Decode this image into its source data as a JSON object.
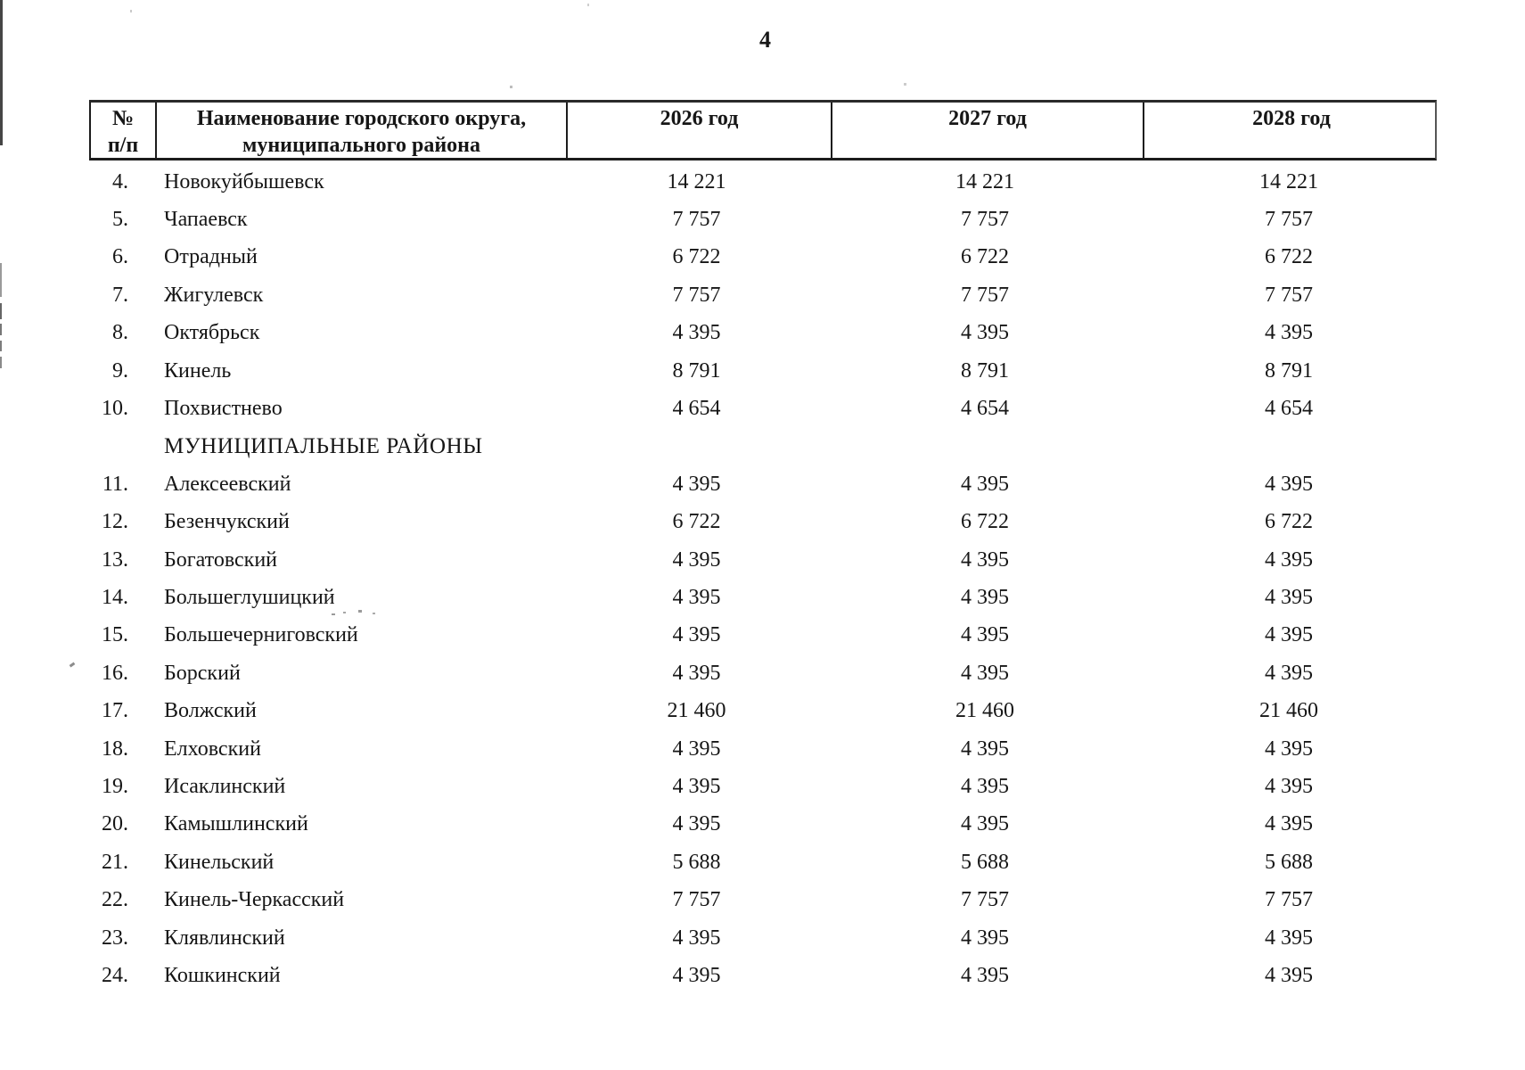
{
  "page": {
    "number": "4"
  },
  "table": {
    "header": {
      "num_line1": "№",
      "num_line2": "п/п",
      "name_line1": "Наименование городского округа,",
      "name_line2": "муниципального района",
      "year_2026": "2026 год",
      "year_2027": "2027 год",
      "year_2028": "2028 год"
    },
    "rows": [
      {
        "num": "4.",
        "name": "Новокуйбышевск",
        "y2026": "14 221",
        "y2027": "14 221",
        "y2028": "14 221"
      },
      {
        "num": "5.",
        "name": "Чапаевск",
        "y2026": "7 757",
        "y2027": "7 757",
        "y2028": "7 757"
      },
      {
        "num": "6.",
        "name": "Отрадный",
        "y2026": "6 722",
        "y2027": "6 722",
        "y2028": "6 722"
      },
      {
        "num": "7.",
        "name": "Жигулевск",
        "y2026": "7 757",
        "y2027": "7 757",
        "y2028": "7 757"
      },
      {
        "num": "8.",
        "name": "Октябрьск",
        "y2026": "4 395",
        "y2027": "4 395",
        "y2028": "4 395"
      },
      {
        "num": "9.",
        "name": "Кинель",
        "y2026": "8 791",
        "y2027": "8 791",
        "y2028": "8 791"
      },
      {
        "num": "10.",
        "name": "Похвистнево",
        "y2026": "4 654",
        "y2027": "4 654",
        "y2028": "4 654"
      },
      {
        "num": "",
        "name": "МУНИЦИПАЛЬНЫЕ РАЙОНЫ",
        "y2026": "",
        "y2027": "",
        "y2028": ""
      },
      {
        "num": "11.",
        "name": "Алексеевский",
        "y2026": "4 395",
        "y2027": "4 395",
        "y2028": "4 395"
      },
      {
        "num": "12.",
        "name": "Безенчукский",
        "y2026": "6 722",
        "y2027": "6 722",
        "y2028": "6 722"
      },
      {
        "num": "13.",
        "name": "Богатовский",
        "y2026": "4 395",
        "y2027": "4 395",
        "y2028": "4 395"
      },
      {
        "num": "14.",
        "name": "Большеглушицкий",
        "y2026": "4 395",
        "y2027": "4 395",
        "y2028": "4 395"
      },
      {
        "num": "15.",
        "name": "Большечерниговский",
        "y2026": "4 395",
        "y2027": "4 395",
        "y2028": "4 395"
      },
      {
        "num": "16.",
        "name": "Борский",
        "y2026": "4 395",
        "y2027": "4 395",
        "y2028": "4 395"
      },
      {
        "num": "17.",
        "name": "Волжский",
        "y2026": "21 460",
        "y2027": "21 460",
        "y2028": "21 460"
      },
      {
        "num": "18.",
        "name": "Елховский",
        "y2026": "4 395",
        "y2027": "4 395",
        "y2028": "4 395"
      },
      {
        "num": "19.",
        "name": "Исаклинский",
        "y2026": "4 395",
        "y2027": "4 395",
        "y2028": "4 395"
      },
      {
        "num": "20.",
        "name": "Камышлинский",
        "y2026": "4 395",
        "y2027": "4 395",
        "y2028": "4 395"
      },
      {
        "num": "21.",
        "name": "Кинельский",
        "y2026": "5 688",
        "y2027": "5 688",
        "y2028": "5 688"
      },
      {
        "num": "22.",
        "name": "Кинель-Черкасский",
        "y2026": "7 757",
        "y2027": "7 757",
        "y2028": "7 757"
      },
      {
        "num": "23.",
        "name": "Клявлинский",
        "y2026": "4 395",
        "y2027": "4 395",
        "y2028": "4 395"
      },
      {
        "num": "24.",
        "name": "Кошкинский",
        "y2026": "4 395",
        "y2027": "4 395",
        "y2028": "4 395"
      }
    ]
  }
}
